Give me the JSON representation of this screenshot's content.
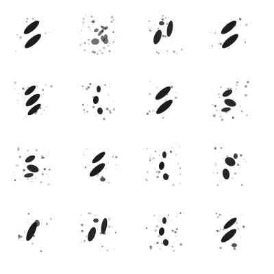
{
  "image": {
    "background": "#ffffff",
    "ink": "#111111",
    "description_hidden": "",
    "grid_rows": 4,
    "grid_cols": 4,
    "tiles": [
      {
        "id": "r1c1",
        "style": "double-slash"
      },
      {
        "id": "r1c2",
        "style": "faint-scatter"
      },
      {
        "id": "r1c3",
        "style": "split-curve"
      },
      {
        "id": "r1c4",
        "style": "double-slash"
      },
      {
        "id": "r2c1",
        "style": "triple-slash"
      },
      {
        "id": "r2c2",
        "style": "vertical-blobs"
      },
      {
        "id": "r2c3",
        "style": "double-slash"
      },
      {
        "id": "r2c4",
        "style": "tangle"
      },
      {
        "id": "r3c1",
        "style": "tangle"
      },
      {
        "id": "r3c2",
        "style": "s-curve"
      },
      {
        "id": "r3c3",
        "style": "vertical-blobs"
      },
      {
        "id": "r3c4",
        "style": "loop"
      },
      {
        "id": "r4c1",
        "style": "curve"
      },
      {
        "id": "r4c2",
        "style": "split-curve"
      },
      {
        "id": "r4c3",
        "style": "vertical-blobs"
      },
      {
        "id": "r4c4",
        "style": "s-curve"
      }
    ]
  }
}
